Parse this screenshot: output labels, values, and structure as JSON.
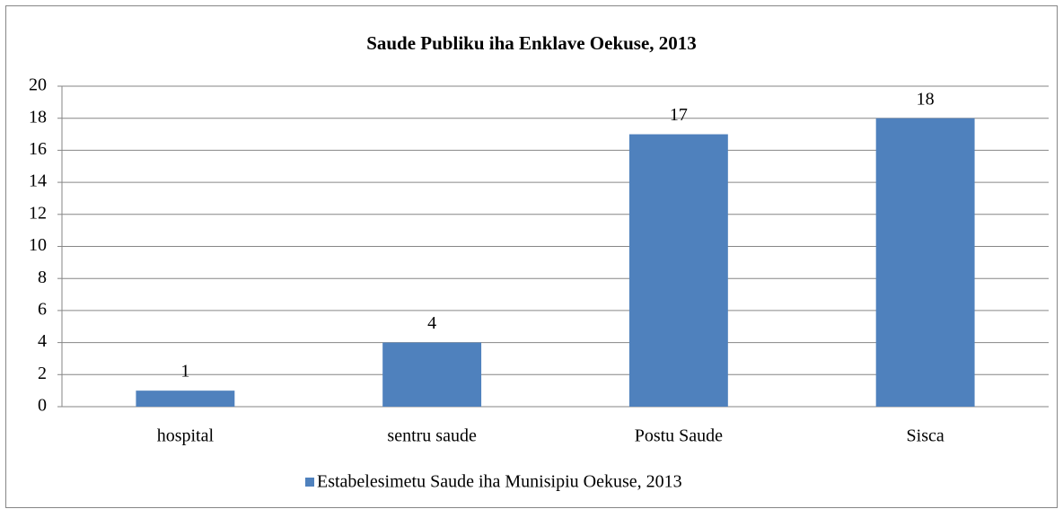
{
  "chart_data": {
    "type": "bar",
    "title": "Saude Publiku iha Enklave Oekuse, 2013",
    "categories": [
      "hospital",
      "sentru saude",
      "Postu Saude",
      "Sisca"
    ],
    "series": [
      {
        "name": "Estabelesimetu Saude iha Munisipiu Oekuse, 2013",
        "color": "#4f81bd",
        "values": [
          1,
          4,
          17,
          18
        ]
      }
    ],
    "ylim": [
      0,
      20
    ],
    "yticks": [
      0,
      2,
      4,
      6,
      8,
      10,
      12,
      14,
      16,
      18,
      20
    ],
    "grid": true,
    "legend": "bottom"
  }
}
